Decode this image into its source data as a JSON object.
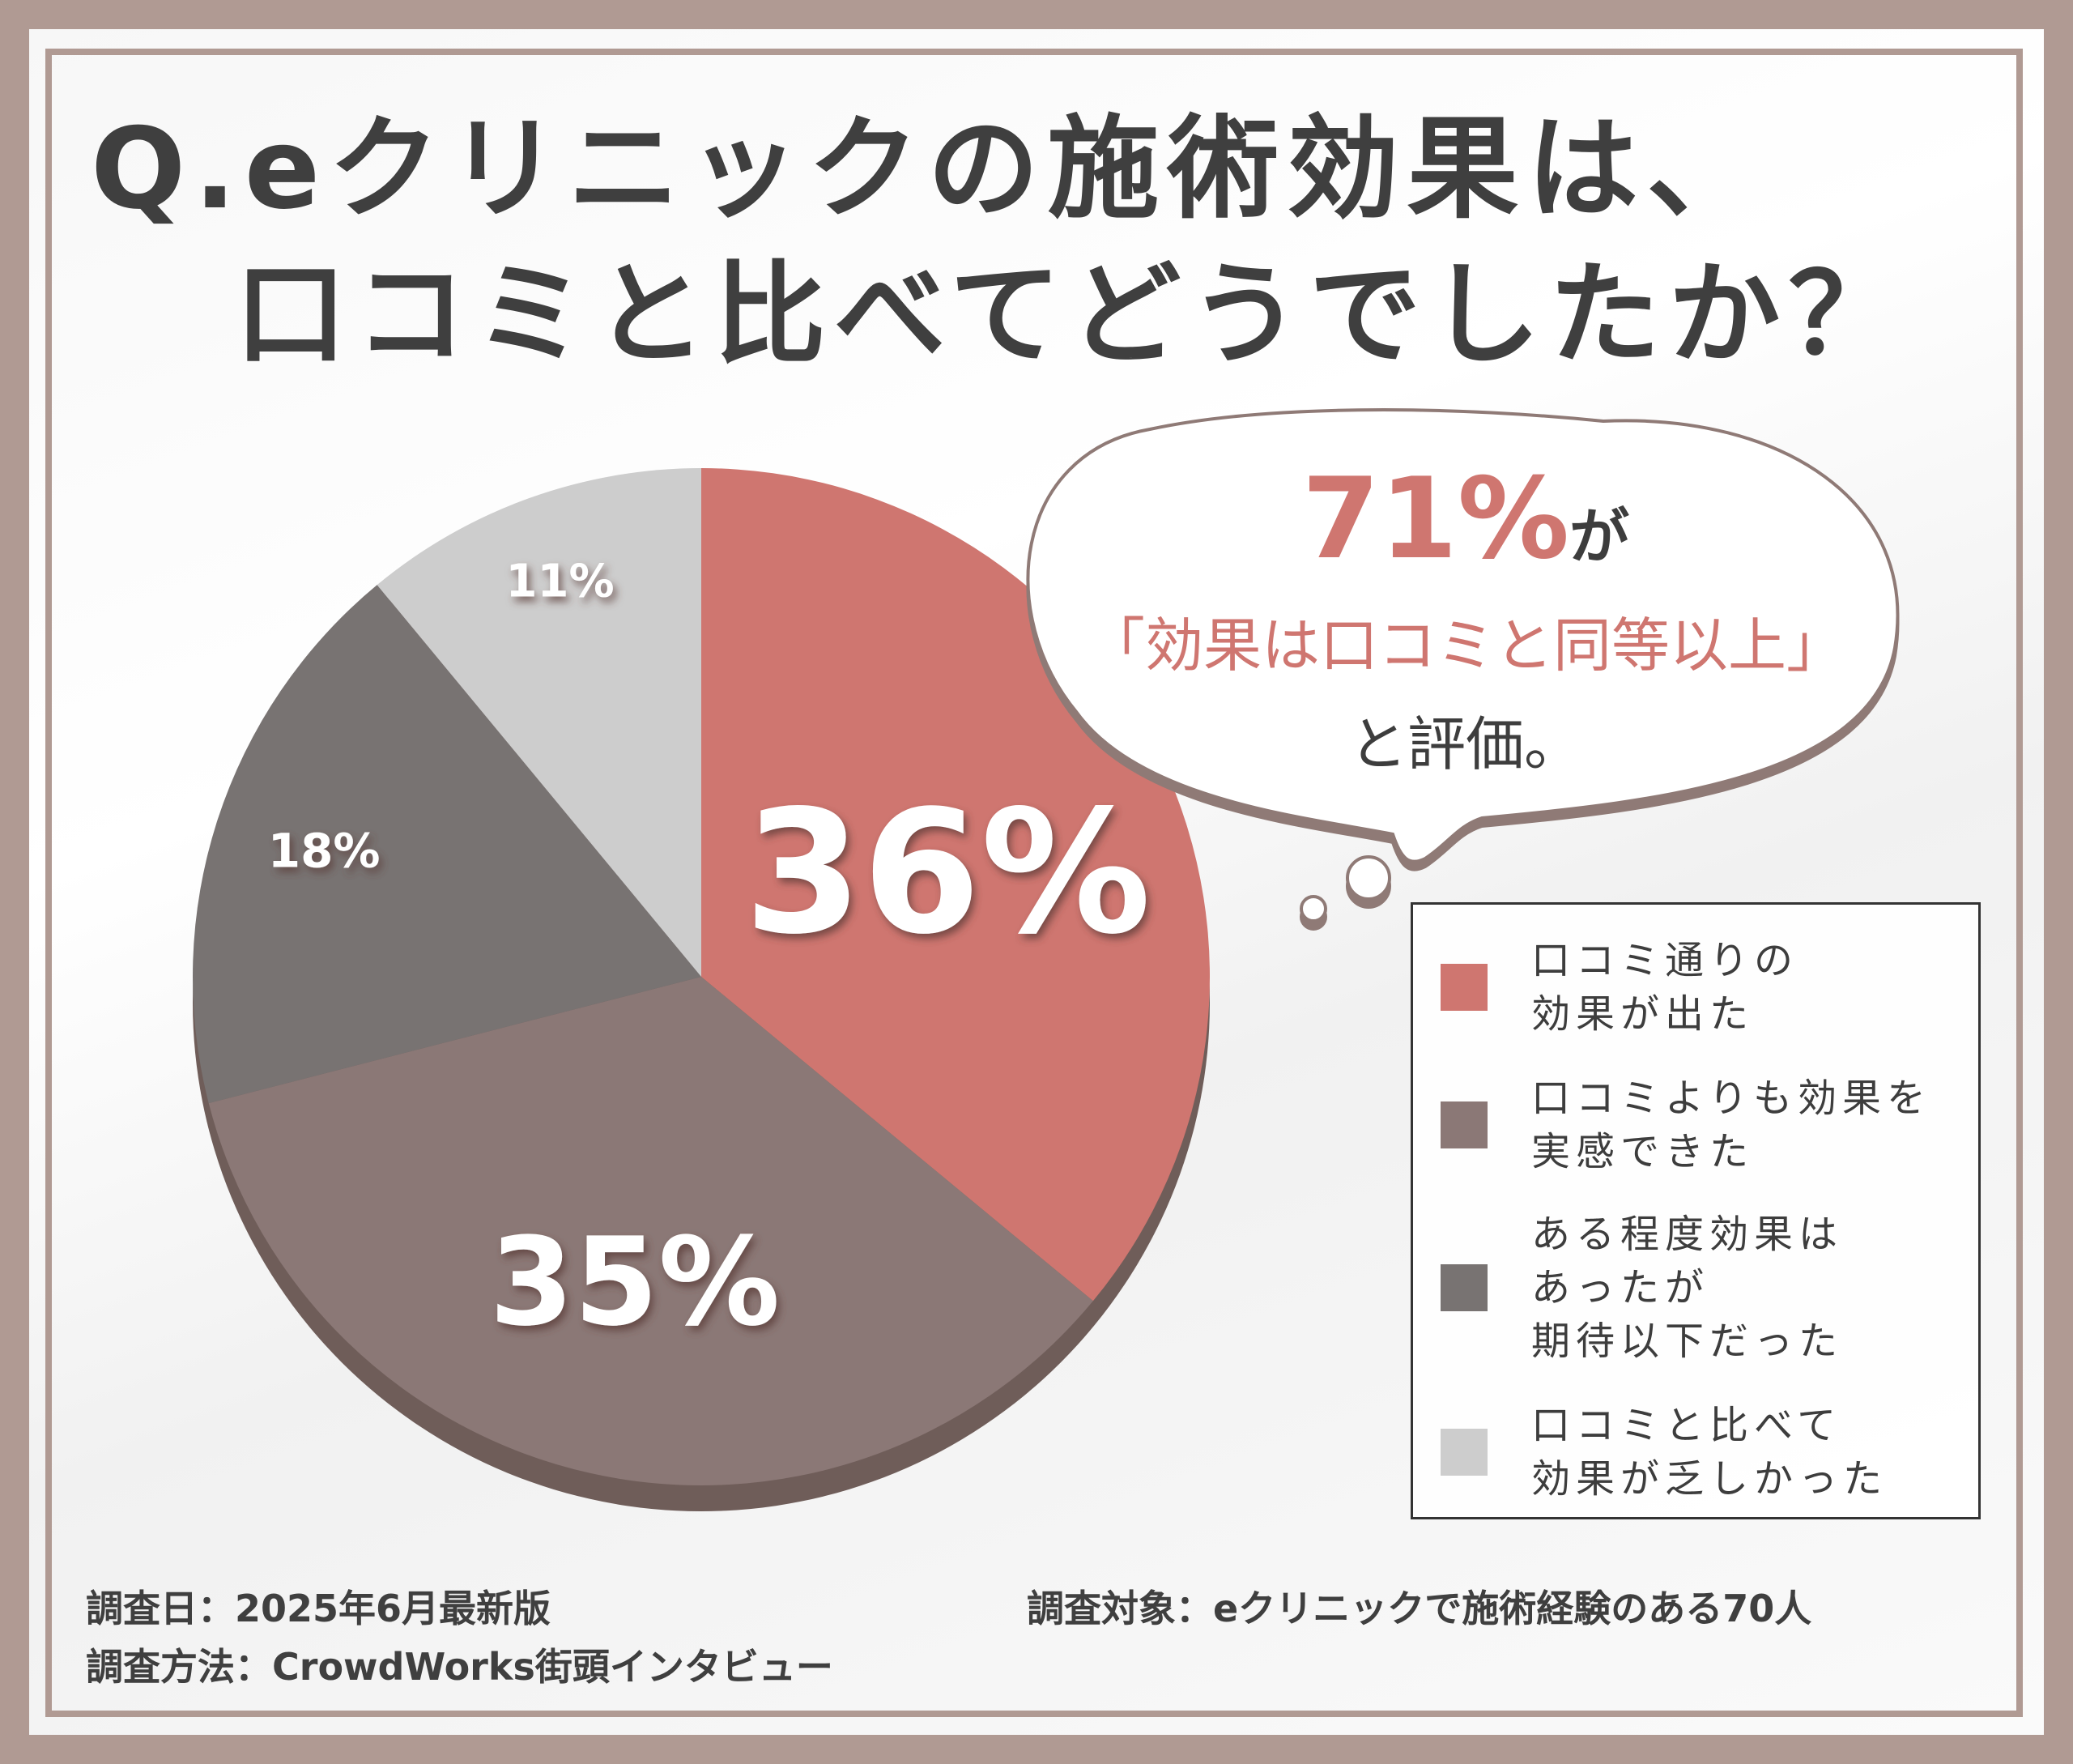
{
  "title_line1": "Q.eクリニックの施術効果は、",
  "title_line2": "口コミと比べてどうでしたか？",
  "chart_data": {
    "type": "pie",
    "categories": [
      "口コミ通りの効果が出た",
      "口コミよりも効果を実感できた",
      "ある程度効果はあったが期待以下だった",
      "口コミと比べて効果が乏しかった"
    ],
    "values": [
      36,
      35,
      18,
      11
    ],
    "data_labels": [
      "36%",
      "35%",
      "18%",
      "11%"
    ],
    "colors": [
      "#cf7670",
      "#8b7876",
      "#787372",
      "#cdcdcd"
    ],
    "legend_position": "right"
  },
  "legend": [
    {
      "text": "口コミ通りの\n効果が出た",
      "color": "#cf7670"
    },
    {
      "text": "口コミよりも効果を\n実感できた",
      "color": "#8b7876"
    },
    {
      "text": "ある程度効果は\nあったが\n期待以下だった",
      "color": "#787372"
    },
    {
      "text": "口コミと比べて\n効果が乏しかった",
      "color": "#cdcdcd"
    }
  ],
  "bubble": {
    "percent": "71%",
    "ga": "が",
    "quote": "「効果は口コミと同等以上」",
    "evaluation": "と評価。"
  },
  "footer": {
    "date": "調査日：2025年6月最新版",
    "method": "調査方法：CrowdWorks街頭インタビュー",
    "target": "調査対象：eクリニックで施術経験のある70人"
  }
}
